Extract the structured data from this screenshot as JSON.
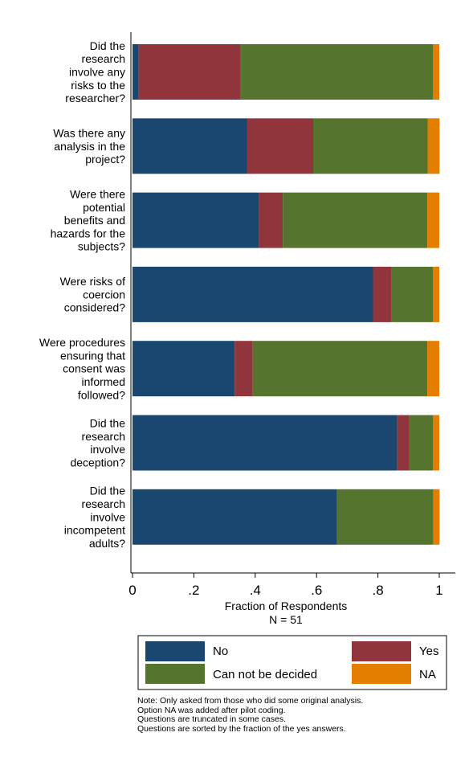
{
  "chart_data": {
    "type": "bar",
    "orientation": "horizontal",
    "stacked": true,
    "categories": [
      [
        "Did the",
        "research",
        "involve any",
        "risks to the",
        "researcher?"
      ],
      [
        "Was there any",
        "analysis in the",
        "project?"
      ],
      [
        "Were there",
        "potential",
        "benefits and",
        "hazards for the",
        "subjects?"
      ],
      [
        "Were risks of",
        "coercion",
        "considered?"
      ],
      [
        "Were procedures",
        "ensuring that",
        "consent was",
        "informed",
        "followed?"
      ],
      [
        "Did the",
        "research",
        "involve",
        "deception?"
      ],
      [
        "Did the",
        "research",
        "involve",
        "incompetent",
        "adults?"
      ]
    ],
    "series": [
      {
        "name": "No",
        "color": "#1a476f",
        "values": [
          0.02,
          0.373,
          0.412,
          0.784,
          0.333,
          0.863,
          0.667
        ]
      },
      {
        "name": "Yes",
        "color": "#90353b",
        "values": [
          0.333,
          0.216,
          0.078,
          0.059,
          0.059,
          0.039,
          0.0
        ]
      },
      {
        "name": "Can not be decided",
        "color": "#55752f",
        "values": [
          0.627,
          0.373,
          0.471,
          0.137,
          0.569,
          0.078,
          0.314
        ]
      },
      {
        "name": "NA",
        "color": "#e37e00",
        "values": [
          0.02,
          0.039,
          0.039,
          0.02,
          0.039,
          0.02,
          0.02
        ]
      }
    ],
    "xticks": [
      "0",
      ".2",
      ".4",
      ".6",
      ".8",
      "1"
    ],
    "xlim": [
      0,
      1
    ],
    "xlabel": "Fraction of Respondents",
    "xlabel2": "N = 51",
    "legend_placement": "bottom",
    "grid": false
  },
  "notes": [
    "Note: Only asked from those who did some original analysis.",
    "Option NA was added after pilot coding.",
    "Questions are truncated in some cases.",
    "Questions are sorted by the fraction of the yes answers."
  ]
}
